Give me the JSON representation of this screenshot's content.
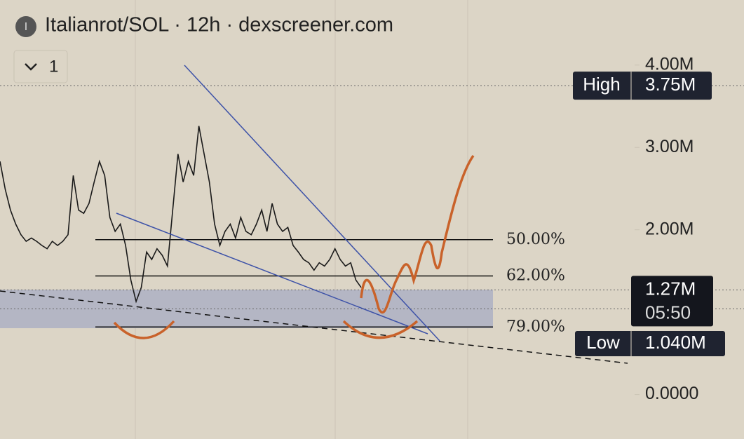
{
  "header": {
    "title": "Italianrot/SOL · 12h · dexscreener.com",
    "icon": "I",
    "collapse": "1"
  },
  "chart_data": {
    "type": "line",
    "series": [
      {
        "color": "#1a1a1a",
        "values": [
          2830000,
          2490000,
          2240000,
          2070000,
          1940000,
          1860000,
          1900000,
          1860000,
          1810000,
          1770000,
          1860000,
          1810000,
          1860000,
          1940000,
          2660000,
          2240000,
          2200000,
          2320000,
          2580000,
          2830000,
          2660000,
          2150000,
          1980000,
          2070000,
          1810000,
          1390000,
          1130000,
          1300000,
          1730000,
          1640000,
          1770000,
          1690000,
          1560000,
          2240000,
          2920000,
          2580000,
          2830000,
          2660000,
          3260000,
          2920000,
          2580000,
          2070000,
          1810000,
          1980000,
          2070000,
          1900000,
          2150000,
          1980000,
          1940000,
          2070000,
          2240000,
          1980000,
          2320000,
          2070000,
          1980000,
          2030000,
          1810000,
          1730000,
          1640000,
          1600000,
          1510000,
          1600000,
          1560000,
          1640000,
          1770000,
          1640000,
          1560000,
          1600000,
          1390000,
          1300000
        ]
      }
    ],
    "ylim": [
      -540000,
      4790000
    ],
    "yticks": [
      {
        "value": 0,
        "label": "0.0000"
      },
      {
        "value": 2000000,
        "label": "2.00M"
      },
      {
        "value": 3000000,
        "label": "3.00M"
      },
      {
        "value": 4000000,
        "label": "4.00M"
      }
    ],
    "high": {
      "label": "High",
      "value": 3750000,
      "value_label": "3.75M"
    },
    "low": {
      "label": "Low",
      "value": 1040000,
      "value_label": "1.040M"
    },
    "last": {
      "value": 1270000,
      "value_label": "1.27M",
      "countdown": "05:50"
    },
    "fib_levels": [
      {
        "value": 1880000,
        "label": "50.00%"
      },
      {
        "value": 1440000,
        "label": "62.00%"
      },
      {
        "value": 820000,
        "label": "79.00%"
      }
    ]
  }
}
